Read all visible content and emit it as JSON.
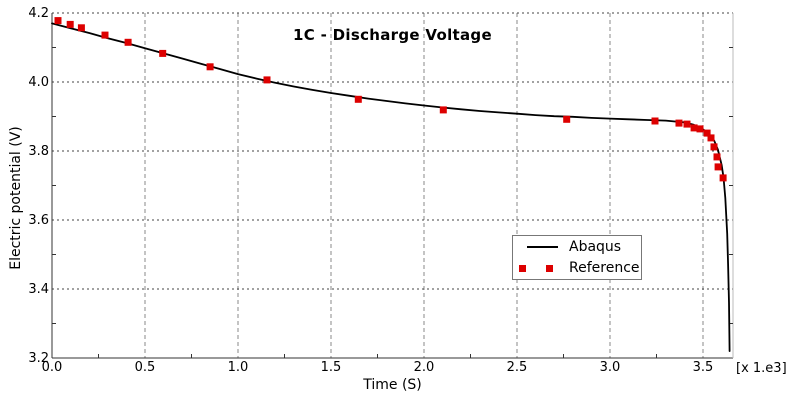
{
  "chart_data": {
    "type": "line",
    "title": "1C - Discharge Voltage",
    "xlabel": "Time (S)",
    "ylabel": "Electric potential (V)",
    "x_multiplier_label": "[x 1.e3]",
    "xlim": [
      0.0,
      3.66
    ],
    "ylim": [
      3.2,
      4.2
    ],
    "x_ticks": {
      "values": [
        0.0,
        0.5,
        1.0,
        1.5,
        2.0,
        2.5,
        3.0,
        3.5
      ],
      "labels": [
        "0.0",
        "0.5",
        "1.0",
        "1.5",
        "2.0",
        "2.5",
        "3.0",
        "3.5"
      ]
    },
    "y_ticks": {
      "values": [
        3.2,
        3.4,
        3.6,
        3.8,
        4.0,
        4.2
      ],
      "labels": [
        "3.2",
        "3.4",
        "3.6",
        "3.8",
        "4.0",
        "4.2"
      ]
    },
    "x_minor_tick_step": 0.25,
    "y_minor_tick_step": 0.1,
    "grid": "major gridlines on, dashed",
    "legend_position": "inside lower-right",
    "colors": {
      "abaqus_line": "#000000",
      "reference_marker": "#dd0000",
      "grid_horizontal": "#444444",
      "grid_vertical": "#888888",
      "axis": "#333333",
      "right_border": "#bbbbbb",
      "background": "#ffffff"
    },
    "series": [
      {
        "name": "Abaqus",
        "type": "line",
        "points": [
          [
            0.0,
            4.17
          ],
          [
            0.1,
            4.156
          ],
          [
            0.2,
            4.142
          ],
          [
            0.3,
            4.127
          ],
          [
            0.4,
            4.113
          ],
          [
            0.5,
            4.098
          ],
          [
            0.6,
            4.083
          ],
          [
            0.7,
            4.068
          ],
          [
            0.8,
            4.053
          ],
          [
            0.9,
            4.038
          ],
          [
            1.0,
            4.023
          ],
          [
            1.1,
            4.01
          ],
          [
            1.2,
            3.998
          ],
          [
            1.3,
            3.987
          ],
          [
            1.4,
            3.977
          ],
          [
            1.5,
            3.968
          ],
          [
            1.6,
            3.96
          ],
          [
            1.7,
            3.952
          ],
          [
            1.8,
            3.945
          ],
          [
            1.9,
            3.938
          ],
          [
            2.0,
            3.932
          ],
          [
            2.1,
            3.926
          ],
          [
            2.2,
            3.921
          ],
          [
            2.3,
            3.916
          ],
          [
            2.4,
            3.912
          ],
          [
            2.5,
            3.908
          ],
          [
            2.6,
            3.904
          ],
          [
            2.7,
            3.901
          ],
          [
            2.8,
            3.899
          ],
          [
            2.9,
            3.896
          ],
          [
            3.0,
            3.894
          ],
          [
            3.1,
            3.892
          ],
          [
            3.2,
            3.89
          ],
          [
            3.3,
            3.888
          ],
          [
            3.4,
            3.883
          ],
          [
            3.45,
            3.876
          ],
          [
            3.5,
            3.863
          ],
          [
            3.53,
            3.851
          ],
          [
            3.56,
            3.83
          ],
          [
            3.58,
            3.804
          ],
          [
            3.6,
            3.76
          ],
          [
            3.61,
            3.724
          ],
          [
            3.62,
            3.664
          ],
          [
            3.63,
            3.56
          ],
          [
            3.635,
            3.47
          ],
          [
            3.64,
            3.36
          ],
          [
            3.643,
            3.22
          ]
        ]
      },
      {
        "name": "Reference",
        "type": "scatter",
        "marker": "square",
        "marker_size": 7,
        "points": [
          [
            0.032,
            4.178
          ],
          [
            0.098,
            4.167
          ],
          [
            0.158,
            4.157
          ],
          [
            0.285,
            4.136
          ],
          [
            0.409,
            4.115
          ],
          [
            0.595,
            4.083
          ],
          [
            0.85,
            4.044
          ],
          [
            1.156,
            4.006
          ],
          [
            1.647,
            3.95
          ],
          [
            2.104,
            3.919
          ],
          [
            2.767,
            3.892
          ],
          [
            3.242,
            3.887
          ],
          [
            3.371,
            3.881
          ],
          [
            3.414,
            3.878
          ],
          [
            3.452,
            3.867
          ],
          [
            3.484,
            3.864
          ],
          [
            3.522,
            3.852
          ],
          [
            3.543,
            3.838
          ],
          [
            3.559,
            3.812
          ],
          [
            3.575,
            3.783
          ],
          [
            3.581,
            3.754
          ],
          [
            3.608,
            3.722
          ]
        ]
      }
    ]
  }
}
